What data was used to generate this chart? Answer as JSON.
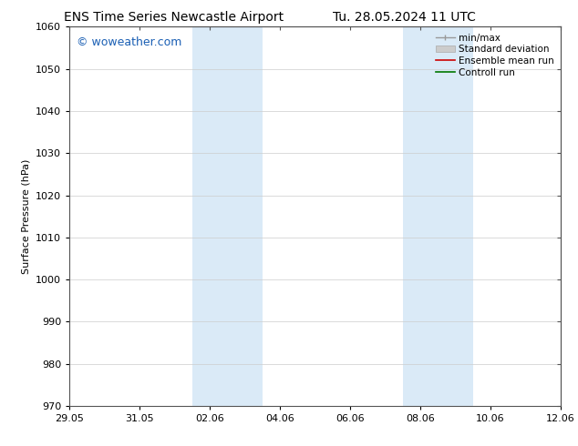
{
  "title_left": "ENS Time Series Newcastle Airport",
  "title_right": "Tu. 28.05.2024 11 UTC",
  "ylabel": "Surface Pressure (hPa)",
  "ylim": [
    970,
    1060
  ],
  "yticks": [
    970,
    980,
    990,
    1000,
    1010,
    1020,
    1030,
    1040,
    1050,
    1060
  ],
  "xlim": [
    0,
    14
  ],
  "xtick_labels": [
    "29.05",
    "31.05",
    "02.06",
    "04.06",
    "06.06",
    "08.06",
    "10.06",
    "12.06"
  ],
  "xtick_positions": [
    0,
    2,
    4,
    6,
    8,
    10,
    12,
    14
  ],
  "shaded_bands": [
    {
      "x_start": 3.5,
      "x_end": 5.5
    },
    {
      "x_start": 9.5,
      "x_end": 11.5
    }
  ],
  "shaded_color": "#daeaf7",
  "watermark_text": "© woweather.com",
  "watermark_color": "#1a5fb4",
  "watermark_fontsize": 9,
  "legend_entries": [
    {
      "label": "min/max",
      "color": "#999999",
      "lw": 1.0,
      "style": "minmax"
    },
    {
      "label": "Standard deviation",
      "color": "#cccccc",
      "lw": 5,
      "style": "band"
    },
    {
      "label": "Ensemble mean run",
      "color": "#cc0000",
      "lw": 1.2,
      "style": "line"
    },
    {
      "label": "Controll run",
      "color": "#007700",
      "lw": 1.2,
      "style": "line"
    }
  ],
  "bg_color": "#ffffff",
  "grid_color": "#cccccc",
  "title_fontsize": 10,
  "axis_label_fontsize": 8,
  "tick_fontsize": 8,
  "legend_fontsize": 7.5
}
